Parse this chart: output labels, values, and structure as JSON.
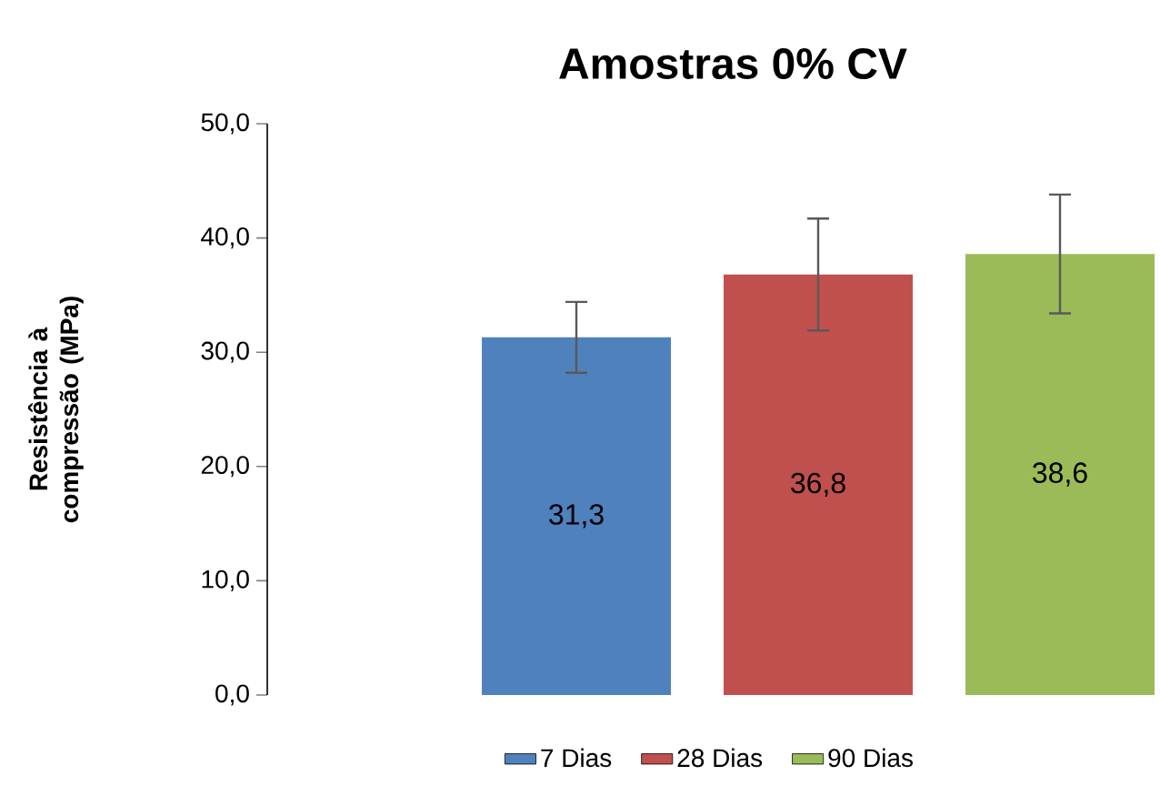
{
  "chart_data": {
    "type": "bar",
    "title": "Amostras 0% CV",
    "ylabel": "Resistência à compressão (MPa)",
    "categories": [
      null
    ],
    "series": [
      {
        "name": "7 Dias",
        "color": "#4f81bd",
        "values": [
          31.3
        ],
        "errors": [
          3.1
        ],
        "value_labels": [
          "31,3"
        ]
      },
      {
        "name": "28 Dias",
        "color": "#c0504d",
        "values": [
          36.8
        ],
        "errors": [
          4.9
        ],
        "value_labels": [
          "36,8"
        ]
      },
      {
        "name": "90 Dias",
        "color": "#9bbb59",
        "values": [
          38.6
        ],
        "errors": [
          5.2
        ],
        "value_labels": [
          "38,6"
        ]
      }
    ],
    "ylim": [
      0,
      50
    ],
    "yticks": [
      {
        "value": 0,
        "label": "0,0"
      },
      {
        "value": 10,
        "label": "10,0"
      },
      {
        "value": 20,
        "label": "20,0"
      },
      {
        "value": 30,
        "label": "30,0"
      },
      {
        "value": 40,
        "label": "40,0"
      },
      {
        "value": 50,
        "label": "50,0"
      }
    ],
    "grid": false,
    "legend": "bottom"
  }
}
